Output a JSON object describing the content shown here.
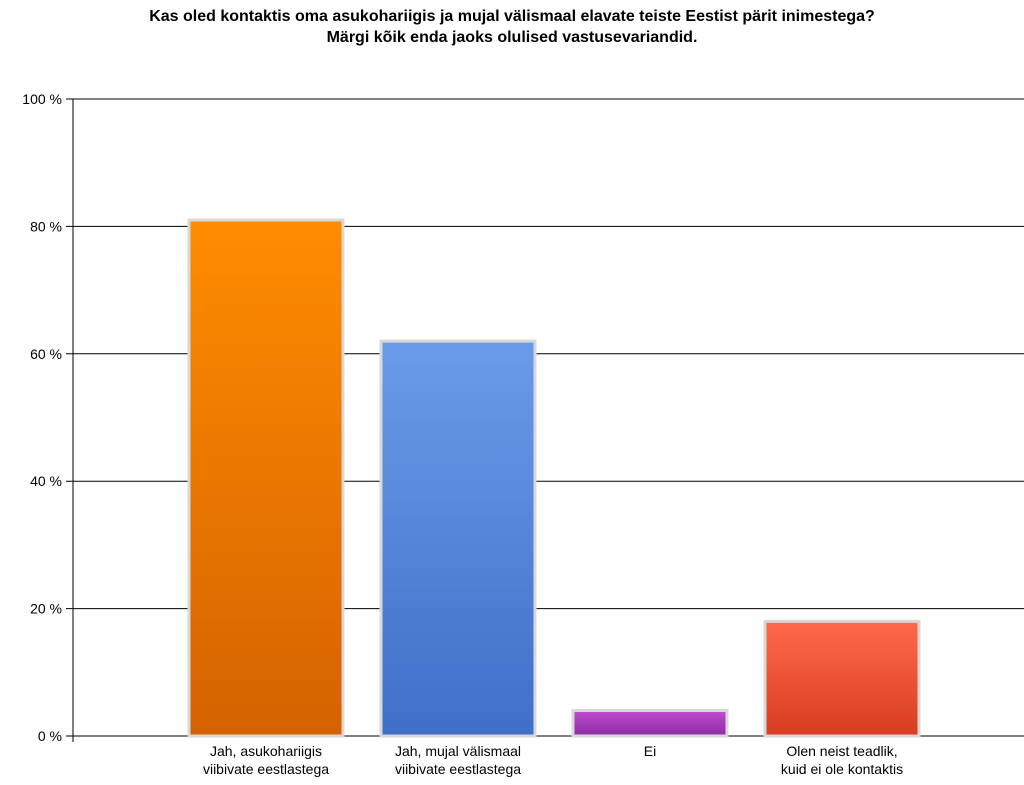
{
  "chart_data": {
    "type": "bar",
    "title": [
      "Kas oled kontaktis oma asukohariigis ja mujal välismaal elavate teiste Eestist pärit inimestega?",
      "Märgi kõik enda jaoks olulised vastusevariandid."
    ],
    "categories": [
      [
        "Jah, asukohariigis",
        "viibivate eestlastega"
      ],
      [
        "Jah, mujal välismaal",
        "viibivate eestlastega"
      ],
      [
        "Ei"
      ],
      [
        "Olen neist teadlik,",
        "kuid ei ole kontaktis"
      ]
    ],
    "values": [
      81,
      62,
      4,
      18
    ],
    "ylim": [
      0,
      100
    ],
    "yticks": [
      0,
      20,
      40,
      60,
      80,
      100
    ],
    "ytick_labels": [
      "0 %",
      "20 %",
      "40 %",
      "60 %",
      "80 %",
      "100 %"
    ],
    "grid": true,
    "colors": [
      [
        "#ff8c00",
        "#d46200"
      ],
      [
        "#6a9be8",
        "#3f6fc8"
      ],
      [
        "#c04ad0",
        "#8a2da0"
      ],
      [
        "#ff6a4a",
        "#d83c22"
      ]
    ]
  }
}
